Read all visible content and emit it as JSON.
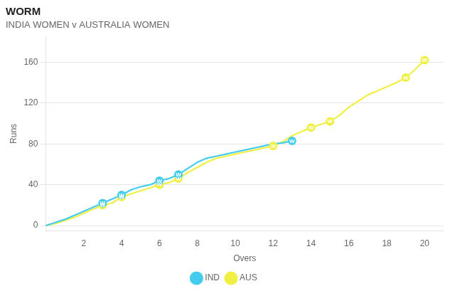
{
  "chart_data": {
    "type": "line",
    "title": "WORM",
    "subtitle": "INDIA WOMEN v AUSTRALIA WOMEN",
    "x_label": "Overs",
    "y_label": "Runs",
    "xlim": [
      0,
      21
    ],
    "ylim": [
      -5,
      185
    ],
    "xticks": [
      2,
      4,
      6,
      8,
      10,
      12,
      14,
      16,
      18,
      20
    ],
    "yticks": [
      0,
      40,
      80,
      120,
      160
    ],
    "grid": "y",
    "legend": "bottom",
    "series": [
      {
        "name": "AUS",
        "color": "#f0f044",
        "x": [
          0,
          0.5,
          1,
          1.5,
          2,
          2.5,
          3,
          3.5,
          4,
          4.5,
          5,
          5.5,
          6,
          6.5,
          7,
          7.5,
          8,
          8.5,
          9,
          9.5,
          10,
          10.5,
          11,
          11.5,
          12,
          12.5,
          13,
          13.5,
          14,
          14.5,
          15,
          15.5,
          16,
          16.5,
          17,
          17.5,
          18,
          18.5,
          19,
          19.5,
          20
        ],
        "values": [
          0,
          2,
          5,
          8,
          12,
          16,
          20,
          22,
          28,
          31,
          34,
          37,
          40,
          42,
          46,
          52,
          57,
          62,
          66,
          68,
          70,
          72,
          74,
          76,
          78,
          82,
          88,
          92,
          96,
          99,
          102,
          108,
          116,
          122,
          128,
          132,
          136,
          140,
          145,
          153,
          162
        ],
        "wickets": {
          "label": "W",
          "x": [
            3,
            4,
            6,
            7,
            12,
            14,
            15,
            19,
            20
          ],
          "values": [
            20,
            28,
            40,
            46,
            78,
            96,
            102,
            145,
            162
          ]
        }
      },
      {
        "name": "IND",
        "color": "#44ccee",
        "x": [
          0,
          0.5,
          1,
          1.5,
          2,
          2.5,
          3,
          3.5,
          4,
          4.5,
          5,
          5.5,
          6,
          6.5,
          7,
          7.5,
          8,
          8.5,
          9,
          9.5,
          10,
          10.5,
          11,
          11.5,
          12,
          12.5,
          13
        ],
        "values": [
          0,
          3,
          6,
          10,
          14,
          18,
          22,
          26,
          30,
          35,
          38,
          40,
          44,
          46,
          50,
          56,
          62,
          66,
          68,
          70,
          72,
          74,
          76,
          78,
          80,
          81,
          83
        ],
        "wickets": {
          "label": "W",
          "x": [
            3,
            4,
            6,
            7,
            13
          ],
          "values": [
            22,
            30,
            44,
            50,
            83
          ]
        }
      }
    ]
  }
}
